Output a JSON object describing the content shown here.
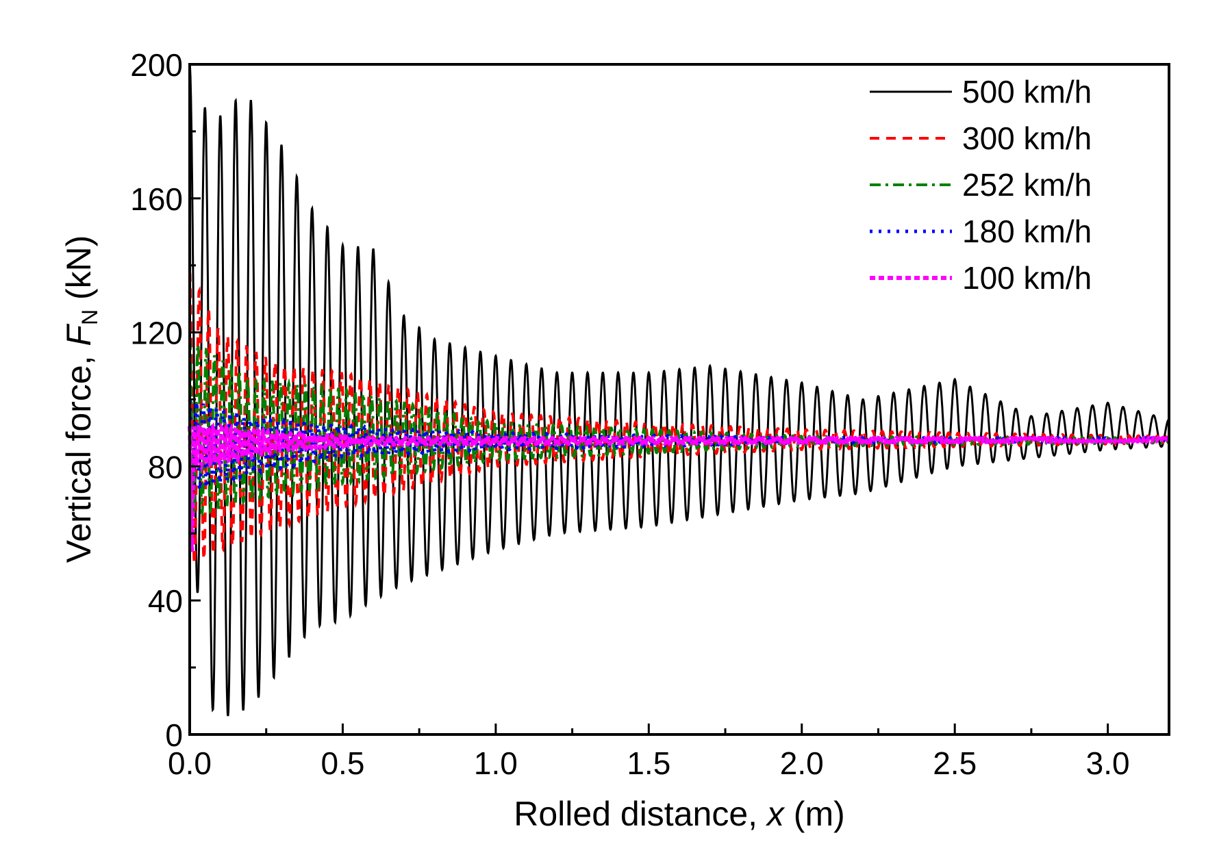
{
  "chart_data": {
    "type": "line",
    "xlabel": "Rolled distance, x (m)",
    "xlabel_parts": {
      "prefix": "Rolled distance, ",
      "var": "x",
      "unit": " (m)"
    },
    "ylabel_parts": {
      "prefix": "Vertical force, ",
      "var": "F",
      "sub": "N",
      "unit": " (kN)"
    },
    "xlim": [
      0,
      3.2
    ],
    "ylim": [
      0,
      200
    ],
    "xticks": [
      "0.0",
      "0.5",
      "1.0",
      "1.5",
      "2.0",
      "2.5",
      "3.0"
    ],
    "yticks": [
      "0",
      "40",
      "80",
      "120",
      "160",
      "200"
    ],
    "legend_position": "top-right",
    "mean_force": 88,
    "series": [
      {
        "name": "500 km/h",
        "color": "#000000",
        "style": "solid",
        "period": 0.05,
        "upper": [
          [
            0,
            200
          ],
          [
            0.07,
            182
          ],
          [
            0.18,
            192
          ],
          [
            0.3,
            176
          ],
          [
            0.4,
            157
          ],
          [
            0.5,
            146
          ],
          [
            0.6,
            145
          ],
          [
            0.7,
            125
          ],
          [
            0.8,
            118
          ],
          [
            1.0,
            113
          ],
          [
            1.2,
            108
          ],
          [
            1.5,
            108
          ],
          [
            1.7,
            110
          ],
          [
            2.0,
            105
          ],
          [
            2.2,
            100
          ],
          [
            2.5,
            106
          ],
          [
            2.75,
            95
          ],
          [
            3.0,
            99
          ],
          [
            3.2,
            94
          ]
        ],
        "lower": [
          [
            0,
            60
          ],
          [
            0.08,
            4
          ],
          [
            0.2,
            8
          ],
          [
            0.3,
            20
          ],
          [
            0.4,
            32
          ],
          [
            0.5,
            34
          ],
          [
            0.6,
            40
          ],
          [
            0.7,
            45
          ],
          [
            0.85,
            50
          ],
          [
            1.0,
            55
          ],
          [
            1.2,
            60
          ],
          [
            1.5,
            62
          ],
          [
            2.0,
            70
          ],
          [
            2.2,
            72
          ],
          [
            2.5,
            80
          ],
          [
            3.0,
            85
          ],
          [
            3.2,
            86
          ]
        ]
      },
      {
        "name": "300 km/h",
        "color": "#ff0000",
        "style": "dashed",
        "period": 0.031,
        "upper": [
          [
            0,
            138
          ],
          [
            0.1,
            120
          ],
          [
            0.3,
            110
          ],
          [
            0.5,
            108
          ],
          [
            1.0,
            96
          ],
          [
            1.5,
            93
          ],
          [
            2.0,
            91
          ],
          [
            2.5,
            90
          ],
          [
            3.2,
            89
          ]
        ],
        "lower": [
          [
            0,
            50
          ],
          [
            0.1,
            55
          ],
          [
            0.3,
            62
          ],
          [
            0.5,
            68
          ],
          [
            1.0,
            80
          ],
          [
            1.5,
            83
          ],
          [
            2.0,
            85
          ],
          [
            3.2,
            87
          ]
        ]
      },
      {
        "name": "252 km/h",
        "color": "#008000",
        "style": "dashdot",
        "period": 0.027,
        "upper": [
          [
            0,
            118
          ],
          [
            0.2,
            106
          ],
          [
            0.5,
            103
          ],
          [
            1.0,
            93
          ],
          [
            1.5,
            91
          ],
          [
            2.0,
            89
          ],
          [
            3.2,
            88.5
          ]
        ],
        "lower": [
          [
            0,
            65
          ],
          [
            0.2,
            70
          ],
          [
            0.5,
            75
          ],
          [
            1.0,
            82
          ],
          [
            2.0,
            86
          ],
          [
            3.2,
            87
          ]
        ]
      },
      {
        "name": "180 km/h",
        "color": "#0000ff",
        "style": "dotted",
        "period": 0.022,
        "upper": [
          [
            0,
            100
          ],
          [
            0.2,
            94
          ],
          [
            0.5,
            92
          ],
          [
            1.0,
            90
          ],
          [
            2.0,
            88.5
          ],
          [
            3.2,
            88.5
          ]
        ],
        "lower": [
          [
            0,
            72
          ],
          [
            0.2,
            78
          ],
          [
            0.5,
            83
          ],
          [
            1.0,
            85
          ],
          [
            2.0,
            87
          ],
          [
            3.2,
            87.5
          ]
        ]
      },
      {
        "name": "100 km/h",
        "color": "#ff00ff",
        "style": "short-dash",
        "period": 0.015,
        "upper": [
          [
            0,
            92
          ],
          [
            0.3,
            90
          ],
          [
            0.6,
            88.5
          ],
          [
            3.2,
            88.5
          ]
        ],
        "lower": [
          [
            0,
            40
          ],
          [
            0.02,
            80
          ],
          [
            0.3,
            85
          ],
          [
            0.6,
            86.5
          ],
          [
            3.2,
            87.5
          ]
        ]
      }
    ]
  }
}
